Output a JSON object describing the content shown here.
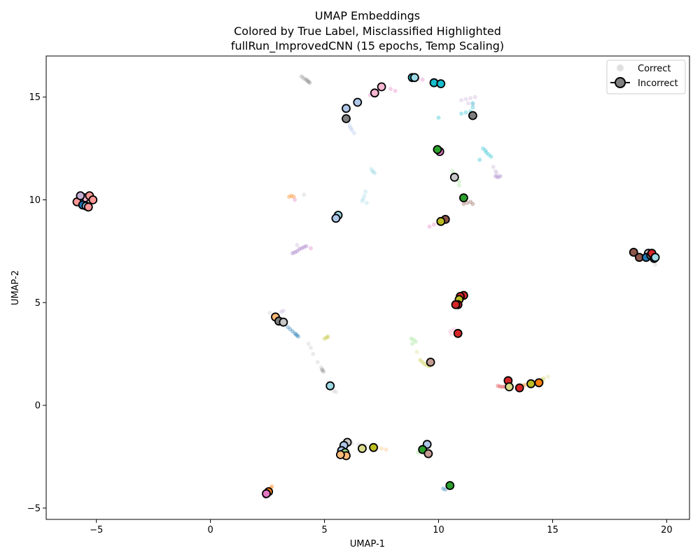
{
  "chart_data": {
    "type": "scatter",
    "title_lines": [
      "UMAP Embeddings",
      "Colored by True Label, Misclassified Highlighted",
      "fullRun_ImprovedCNN (15 epochs, Temp Scaling)"
    ],
    "xlabel": "UMAP-1",
    "ylabel": "UMAP-2",
    "xlim": [
      -7.2,
      21.0
    ],
    "ylim": [
      -5.55,
      17.0
    ],
    "xticks": [
      -5,
      0,
      5,
      10,
      15,
      20
    ],
    "yticks": [
      -5,
      0,
      5,
      10,
      15
    ],
    "grid": false,
    "legend": {
      "placement": "top-right",
      "entries": [
        {
          "label": "Correct",
          "style": "small-faded-marker"
        },
        {
          "label": "Incorrect",
          "style": "large-outlined-marker"
        }
      ]
    },
    "colors": {
      "blue": "#1f77b4",
      "orange": "#ff7f0e",
      "green": "#2ca02c",
      "red": "#d62728",
      "purple": "#9467bd",
      "brown": "#8c564b",
      "pink": "#e377c2",
      "gray": "#7f7f7f",
      "olive": "#bcbd22",
      "cyan": "#17becf",
      "lightblue": "#aec7e8",
      "lightorange": "#ffbb78",
      "lightgreen": "#98df8a",
      "lightred": "#ff9896",
      "lightpurple": "#c5b0d5",
      "lightbrown": "#c49c94",
      "lightpink": "#f7b6d2",
      "lightgray": "#c7c7c7",
      "lightolive": "#dbdb8d",
      "lightcyan": "#9edae5"
    },
    "correct_clusters": [
      {
        "color": "gray",
        "points": [
          [
            4.0,
            16.0
          ],
          [
            4.1,
            15.9
          ],
          [
            4.2,
            15.85
          ],
          [
            4.25,
            15.8
          ],
          [
            4.3,
            15.75
          ],
          [
            4.35,
            15.7
          ]
        ]
      },
      {
        "color": "pink",
        "points": [
          [
            7.0,
            15.1
          ],
          [
            7.3,
            15.3
          ],
          [
            7.6,
            15.5
          ],
          [
            7.9,
            15.4
          ],
          [
            8.1,
            15.3
          ]
        ]
      },
      {
        "color": "pink",
        "points": [
          [
            8.9,
            15.95
          ],
          [
            9.1,
            15.9
          ],
          [
            9.3,
            15.85
          ]
        ]
      },
      {
        "color": "lightpurple",
        "points": [
          [
            11.0,
            14.85
          ],
          [
            11.2,
            14.9
          ],
          [
            11.4,
            14.95
          ],
          [
            11.6,
            15.0
          ],
          [
            11.3,
            14.7
          ],
          [
            11.5,
            14.65
          ]
        ]
      },
      {
        "color": "lightblue",
        "points": [
          [
            5.9,
            14.3
          ],
          [
            6.0,
            14.0
          ],
          [
            6.05,
            13.8
          ],
          [
            6.1,
            13.6
          ],
          [
            6.15,
            13.5
          ],
          [
            6.2,
            13.4
          ],
          [
            6.3,
            13.25
          ]
        ]
      },
      {
        "color": "lightblue",
        "points": [
          [
            6.5,
            14.75
          ]
        ]
      },
      {
        "color": "cyan",
        "points": [
          [
            11.0,
            14.2
          ],
          [
            11.2,
            14.25
          ],
          [
            11.4,
            14.3
          ],
          [
            11.5,
            14.5
          ],
          [
            11.5,
            14.7
          ],
          [
            10.0,
            14.0
          ]
        ]
      },
      {
        "color": "cyan",
        "points": [
          [
            11.95,
            12.5
          ],
          [
            12.05,
            12.4
          ],
          [
            12.1,
            12.3
          ],
          [
            12.2,
            12.2
          ],
          [
            12.3,
            12.1
          ],
          [
            11.8,
            11.95
          ]
        ]
      },
      {
        "color": "lightcyan",
        "points": [
          [
            7.05,
            11.5
          ],
          [
            7.1,
            11.4
          ],
          [
            7.15,
            11.35
          ],
          [
            7.2,
            11.3
          ]
        ]
      },
      {
        "color": "lightcyan",
        "points": [
          [
            6.8,
            10.4
          ],
          [
            6.75,
            10.2
          ],
          [
            6.7,
            10.05
          ],
          [
            6.65,
            9.95
          ],
          [
            6.85,
            9.85
          ]
        ]
      },
      {
        "color": "lightpurple",
        "points": [
          [
            12.4,
            11.6
          ],
          [
            12.5,
            11.4
          ],
          [
            12.55,
            11.3
          ]
        ]
      },
      {
        "color": "purple",
        "points": [
          [
            12.5,
            11.15
          ],
          [
            12.6,
            11.1
          ],
          [
            12.7,
            11.15
          ]
        ]
      },
      {
        "color": "lightgreen",
        "points": [
          [
            10.6,
            11.4
          ],
          [
            10.7,
            11.25
          ],
          [
            10.8,
            11.1
          ],
          [
            10.9,
            10.9
          ],
          [
            10.9,
            10.7
          ]
        ]
      },
      {
        "color": "brown",
        "points": [
          [
            11.1,
            9.8
          ],
          [
            11.25,
            9.85
          ],
          [
            11.4,
            9.9
          ],
          [
            11.5,
            9.8
          ]
        ]
      },
      {
        "color": "pink",
        "points": [
          [
            9.6,
            8.7
          ],
          [
            9.8,
            8.8
          ],
          [
            10.0,
            8.85
          ],
          [
            10.2,
            8.9
          ],
          [
            10.4,
            8.95
          ]
        ]
      },
      {
        "color": "orange",
        "points": [
          [
            3.45,
            10.15
          ],
          [
            3.55,
            10.2
          ],
          [
            3.65,
            10.15
          ]
        ]
      },
      {
        "color": "pink",
        "points": [
          [
            3.7,
            10.0
          ]
        ]
      },
      {
        "color": "lightgray",
        "points": [
          [
            4.1,
            10.25
          ]
        ]
      },
      {
        "color": "purple",
        "points": [
          [
            3.6,
            7.4
          ],
          [
            3.7,
            7.45
          ],
          [
            3.8,
            7.5
          ],
          [
            3.9,
            7.6
          ],
          [
            4.0,
            7.65
          ],
          [
            4.1,
            7.7
          ],
          [
            4.2,
            7.75
          ]
        ]
      },
      {
        "color": "lightpurple",
        "points": [
          [
            3.8,
            7.8
          ]
        ]
      },
      {
        "color": "pink",
        "points": [
          [
            4.4,
            7.65
          ]
        ]
      },
      {
        "color": "lightgray",
        "points": [
          [
            19.5,
            6.85
          ]
        ]
      },
      {
        "color": "lightgray",
        "points": [
          [
            2.6,
            4.5
          ],
          [
            2.8,
            4.4
          ]
        ]
      },
      {
        "color": "lightpurple",
        "points": [
          [
            3.1,
            4.55
          ],
          [
            3.2,
            4.6
          ]
        ]
      },
      {
        "color": "blue",
        "points": [
          [
            3.4,
            3.8
          ],
          [
            3.5,
            3.7
          ],
          [
            3.6,
            3.6
          ],
          [
            3.7,
            3.5
          ],
          [
            3.75,
            3.45
          ],
          [
            3.8,
            3.4
          ],
          [
            3.85,
            3.35
          ]
        ]
      },
      {
        "color": "olive",
        "points": [
          [
            5.0,
            3.25
          ],
          [
            5.1,
            3.3
          ],
          [
            5.15,
            3.35
          ]
        ]
      },
      {
        "color": "lightgray",
        "points": [
          [
            4.3,
            3.0
          ],
          [
            4.4,
            2.8
          ],
          [
            4.5,
            2.5
          ],
          [
            4.7,
            2.1
          ],
          [
            4.85,
            1.85
          ],
          [
            4.9,
            1.7
          ]
        ]
      },
      {
        "color": "gray",
        "points": [
          [
            4.9,
            1.75
          ],
          [
            4.95,
            1.65
          ]
        ]
      },
      {
        "color": "lightgreen",
        "points": [
          [
            8.8,
            3.25
          ],
          [
            8.9,
            3.2
          ],
          [
            9.0,
            3.1
          ],
          [
            8.85,
            3.0
          ]
        ]
      },
      {
        "color": "olive",
        "points": [
          [
            9.2,
            2.2
          ],
          [
            9.3,
            2.1
          ],
          [
            9.4,
            2.0
          ],
          [
            9.5,
            1.95
          ],
          [
            9.6,
            1.9
          ]
        ]
      },
      {
        "color": "lightolive",
        "points": [
          [
            9.05,
            2.6
          ]
        ]
      },
      {
        "color": "lightpink",
        "points": [
          [
            10.5,
            3.6
          ],
          [
            10.6,
            3.65
          ],
          [
            10.7,
            3.7
          ],
          [
            10.55,
            3.45
          ]
        ]
      },
      {
        "color": "red",
        "points": [
          [
            12.6,
            0.95
          ],
          [
            12.7,
            0.92
          ],
          [
            12.8,
            0.9
          ],
          [
            12.9,
            0.92
          ],
          [
            13.0,
            0.94
          ]
        ]
      },
      {
        "color": "orange",
        "points": [
          [
            13.6,
            0.95
          ],
          [
            13.7,
            0.97
          ],
          [
            13.8,
            1.0
          ]
        ]
      },
      {
        "color": "olive",
        "points": [
          [
            14.4,
            1.2
          ],
          [
            14.5,
            1.25
          ],
          [
            14.6,
            1.3
          ],
          [
            14.55,
            1.15
          ]
        ]
      },
      {
        "color": "lightolive",
        "points": [
          [
            14.8,
            1.4
          ]
        ]
      },
      {
        "color": "lightgray",
        "points": [
          [
            5.4,
            0.7
          ],
          [
            5.5,
            0.65
          ]
        ]
      },
      {
        "color": "lightgray",
        "points": [
          [
            6.2,
            -1.85
          ],
          [
            6.5,
            -1.9
          ],
          [
            6.8,
            -1.95
          ]
        ]
      },
      {
        "color": "lightorange",
        "points": [
          [
            7.3,
            -2.05
          ],
          [
            7.5,
            -2.1
          ],
          [
            7.7,
            -2.15
          ]
        ]
      },
      {
        "color": "lightgreen",
        "points": [
          [
            9.1,
            -2.3
          ],
          [
            9.3,
            -2.25
          ]
        ]
      },
      {
        "color": "blue",
        "points": [
          [
            10.2,
            -4.05
          ],
          [
            10.3,
            -4.1
          ]
        ]
      },
      {
        "color": "orange",
        "points": [
          [
            2.65,
            -4.0
          ],
          [
            2.7,
            -3.95
          ]
        ]
      },
      {
        "color": "purple",
        "points": [
          [
            2.4,
            -4.45
          ]
        ]
      }
    ],
    "incorrect_points": [
      {
        "x": -5.65,
        "y": 10.15,
        "color": "lightgray"
      },
      {
        "x": -5.5,
        "y": 10.1,
        "color": "lightpink"
      },
      {
        "x": -5.3,
        "y": 10.2,
        "color": "lightred"
      },
      {
        "x": -5.15,
        "y": 10.0,
        "color": "lightred"
      },
      {
        "x": -5.75,
        "y": 9.95,
        "color": "blue"
      },
      {
        "x": -5.85,
        "y": 9.9,
        "color": "lightred"
      },
      {
        "x": -5.6,
        "y": 9.75,
        "color": "blue"
      },
      {
        "x": -5.45,
        "y": 9.7,
        "color": "lightblue"
      },
      {
        "x": -5.35,
        "y": 9.65,
        "color": "lightred"
      },
      {
        "x": -5.7,
        "y": 10.2,
        "color": "lightpurple"
      },
      {
        "x": 8.85,
        "y": 15.95,
        "color": "cyan"
      },
      {
        "x": 8.95,
        "y": 15.95,
        "color": "lightcyan"
      },
      {
        "x": 7.5,
        "y": 15.5,
        "color": "lightpink"
      },
      {
        "x": 7.2,
        "y": 15.2,
        "color": "lightpink"
      },
      {
        "x": 9.8,
        "y": 15.7,
        "color": "cyan"
      },
      {
        "x": 10.1,
        "y": 15.65,
        "color": "cyan"
      },
      {
        "x": 5.95,
        "y": 14.45,
        "color": "lightblue"
      },
      {
        "x": 6.45,
        "y": 14.75,
        "color": "lightblue"
      },
      {
        "x": 5.95,
        "y": 13.95,
        "color": "gray"
      },
      {
        "x": 11.5,
        "y": 14.1,
        "color": "gray"
      },
      {
        "x": 10.05,
        "y": 12.35,
        "color": "pink"
      },
      {
        "x": 9.95,
        "y": 12.45,
        "color": "green"
      },
      {
        "x": 10.7,
        "y": 11.1,
        "color": "lightgray"
      },
      {
        "x": 11.1,
        "y": 10.1,
        "color": "green"
      },
      {
        "x": 5.6,
        "y": 9.25,
        "color": "lightcyan"
      },
      {
        "x": 5.5,
        "y": 9.1,
        "color": "lightblue"
      },
      {
        "x": 10.3,
        "y": 9.05,
        "color": "brown"
      },
      {
        "x": 10.1,
        "y": 8.95,
        "color": "olive"
      },
      {
        "x": 18.55,
        "y": 7.45,
        "color": "brown"
      },
      {
        "x": 18.8,
        "y": 7.2,
        "color": "brown"
      },
      {
        "x": 19.2,
        "y": 7.4,
        "color": "lightgray"
      },
      {
        "x": 19.1,
        "y": 7.2,
        "color": "blue"
      },
      {
        "x": 19.3,
        "y": 7.3,
        "color": "gray"
      },
      {
        "x": 19.45,
        "y": 7.15,
        "color": "blue"
      },
      {
        "x": 19.35,
        "y": 7.4,
        "color": "red"
      },
      {
        "x": 19.5,
        "y": 7.2,
        "color": "lightcyan"
      },
      {
        "x": 11.1,
        "y": 5.35,
        "color": "red"
      },
      {
        "x": 10.95,
        "y": 5.3,
        "color": "red"
      },
      {
        "x": 10.9,
        "y": 5.15,
        "color": "olive"
      },
      {
        "x": 10.85,
        "y": 4.9,
        "color": "red"
      },
      {
        "x": 10.75,
        "y": 4.9,
        "color": "red"
      },
      {
        "x": 10.85,
        "y": 3.5,
        "color": "red"
      },
      {
        "x": 2.85,
        "y": 4.3,
        "color": "lightorange"
      },
      {
        "x": 3.0,
        "y": 4.1,
        "color": "gray"
      },
      {
        "x": 3.2,
        "y": 4.05,
        "color": "lightgray"
      },
      {
        "x": 9.65,
        "y": 2.1,
        "color": "lightbrown"
      },
      {
        "x": 5.25,
        "y": 0.95,
        "color": "lightcyan"
      },
      {
        "x": 13.05,
        "y": 1.2,
        "color": "red"
      },
      {
        "x": 13.1,
        "y": 0.9,
        "color": "lightolive"
      },
      {
        "x": 13.55,
        "y": 0.85,
        "color": "red"
      },
      {
        "x": 14.05,
        "y": 1.05,
        "color": "olive"
      },
      {
        "x": 14.4,
        "y": 1.1,
        "color": "orange"
      },
      {
        "x": 6.0,
        "y": -1.8,
        "color": "lightgray"
      },
      {
        "x": 5.85,
        "y": -1.95,
        "color": "lightblue"
      },
      {
        "x": 5.75,
        "y": -2.2,
        "color": "lightblue"
      },
      {
        "x": 5.9,
        "y": -2.3,
        "color": "lightgreen"
      },
      {
        "x": 5.95,
        "y": -2.45,
        "color": "lightorange"
      },
      {
        "x": 5.7,
        "y": -2.4,
        "color": "lightorange"
      },
      {
        "x": 6.65,
        "y": -2.1,
        "color": "lightolive"
      },
      {
        "x": 7.15,
        "y": -2.05,
        "color": "olive"
      },
      {
        "x": 9.5,
        "y": -1.9,
        "color": "lightblue"
      },
      {
        "x": 9.3,
        "y": -2.15,
        "color": "green"
      },
      {
        "x": 9.55,
        "y": -2.35,
        "color": "lightbrown"
      },
      {
        "x": 10.5,
        "y": -3.9,
        "color": "green"
      },
      {
        "x": 2.55,
        "y": -4.2,
        "color": "orange"
      },
      {
        "x": 2.45,
        "y": -4.3,
        "color": "pink"
      }
    ]
  }
}
